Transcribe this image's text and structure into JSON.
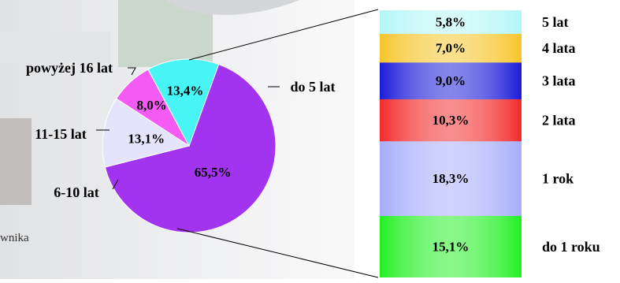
{
  "chart_data": [
    {
      "type": "pie",
      "categories": [
        "do 5 lat",
        "6-10 lat",
        "11-15 lat",
        "powyżej 16 lat"
      ],
      "values": [
        65.5,
        13.1,
        8.0,
        13.4
      ],
      "value_labels": [
        "65,5%",
        "13,1%",
        "8,0%",
        "13,4%"
      ],
      "colors": [
        "#a233ee",
        "#e4e4fc",
        "#f45af4",
        "#48f4f4"
      ]
    },
    {
      "type": "bar",
      "stacked": true,
      "categories": [
        "do 1 roku",
        "1 rok",
        "2 lata",
        "3 lata",
        "4 lata",
        "5 lat"
      ],
      "values": [
        15.1,
        18.3,
        10.3,
        9.0,
        7.0,
        5.8
      ],
      "value_labels": [
        "15,1%",
        "18,3%",
        "10,3%",
        "9,0%",
        "7,0%",
        "5,8%"
      ],
      "colors": [
        "#22f022",
        "#a6acfa",
        "#f42a2a",
        "#1a1ad8",
        "#f7c52a",
        "#b4f6f6"
      ]
    }
  ],
  "footnote": "wnika"
}
